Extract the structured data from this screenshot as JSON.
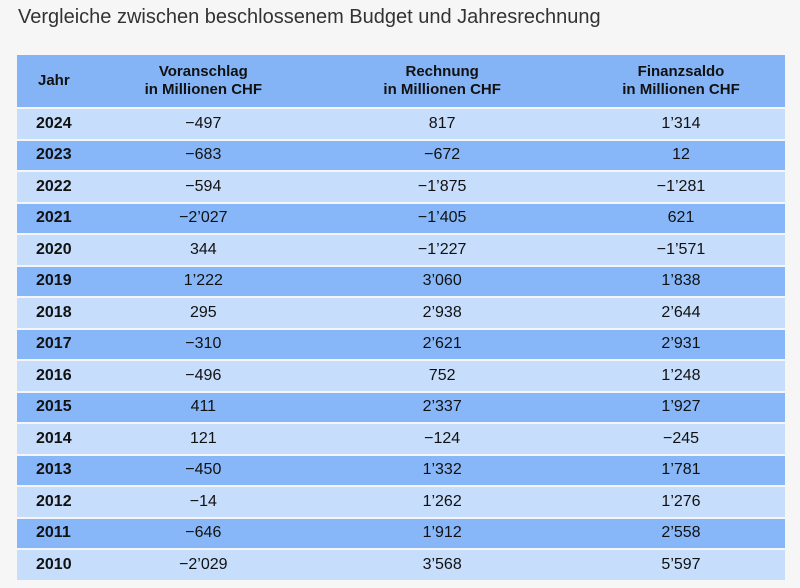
{
  "title": "Vergleiche zwischen beschlossenem Budget und Jahresrechnung",
  "colors": {
    "header": "#84b4f6",
    "row_dark": "#87b7f8",
    "row_light": "#c6ddfb"
  },
  "table": {
    "headers": [
      {
        "line1": "Jahr",
        "line2": ""
      },
      {
        "line1": "Voranschlag",
        "line2": "in Millionen CHF"
      },
      {
        "line1": "Rechnung",
        "line2": "in Millionen CHF"
      },
      {
        "line1": "Finanzsaldo",
        "line2": "in Millionen CHF"
      }
    ],
    "rows": [
      [
        "2024",
        "−497",
        "817",
        "1’314"
      ],
      [
        "2023",
        "−683",
        "−672",
        "12"
      ],
      [
        "2022",
        "−594",
        "−1’875",
        "−1’281"
      ],
      [
        "2021",
        "−2’027",
        "−1’405",
        "621"
      ],
      [
        "2020",
        "344",
        "−1’227",
        "−1’571"
      ],
      [
        "2019",
        "1’222",
        "3’060",
        "1’838"
      ],
      [
        "2018",
        "295",
        "2’938",
        "2’644"
      ],
      [
        "2017",
        "−310",
        "2’621",
        "2’931"
      ],
      [
        "2016",
        "−496",
        "752",
        "1’248"
      ],
      [
        "2015",
        "411",
        "2’337",
        "1’927"
      ],
      [
        "2014",
        "121",
        "−124",
        "−245"
      ],
      [
        "2013",
        "−450",
        "1’332",
        "1’781"
      ],
      [
        "2012",
        "−14",
        "1’262",
        "1’276"
      ],
      [
        "2011",
        "−646",
        "1’912",
        "2’558"
      ],
      [
        "2010",
        "−2’029",
        "3’568",
        "5’597"
      ]
    ]
  }
}
